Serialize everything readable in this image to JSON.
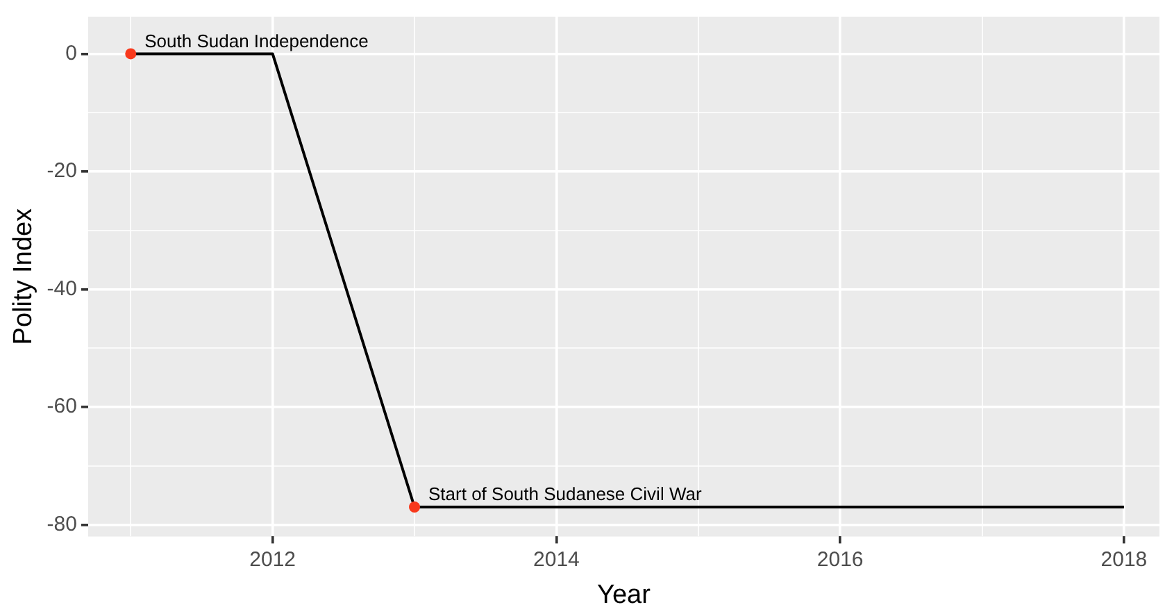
{
  "chart_data": {
    "type": "line",
    "xlabel": "Year",
    "ylabel": "Polity Index",
    "x": [
      2011,
      2012,
      2013,
      2014,
      2015,
      2016,
      2017,
      2018
    ],
    "series": [
      {
        "color": "#000000",
        "values": [
          0,
          0,
          -77,
          -77,
          -77,
          -77,
          -77,
          -77
        ]
      },
      {
        "type": "scatter",
        "color": "#f8391c",
        "x": [
          2011,
          2013
        ],
        "values": [
          0,
          -77
        ]
      }
    ],
    "annotations": [
      {
        "text": "South Sudan Independence",
        "x": 2011,
        "y": 0
      },
      {
        "text": "Start of South Sudanese Civil War",
        "x": 2013,
        "y": -77
      }
    ],
    "xlim": [
      2010.7,
      2018.25
    ],
    "ylim": [
      -82,
      6.3
    ],
    "xticks": [
      {
        "value": 2011,
        "label": null
      },
      2012,
      {
        "value": 2013,
        "label": null
      },
      2014,
      {
        "value": 2015,
        "label": null
      },
      2016,
      {
        "value": 2017,
        "label": null
      },
      2018
    ],
    "yticks": [
      -80,
      {
        "value": -70,
        "label": null
      },
      -60,
      {
        "value": -50,
        "label": null
      },
      -40,
      {
        "value": -30,
        "label": null
      },
      -20,
      {
        "value": -10,
        "label": null
      },
      0
    ],
    "grid": true,
    "legend": false,
    "line_style": "solid"
  }
}
